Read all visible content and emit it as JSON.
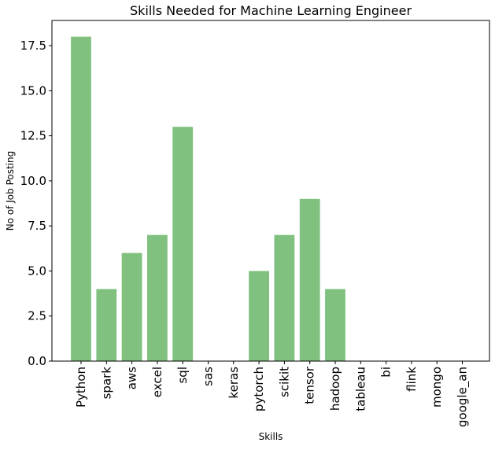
{
  "chart_data": {
    "type": "bar",
    "title": "Skills Needed for Machine Learning Engineer",
    "xlabel": "Skills",
    "ylabel": "No of Job Posting",
    "categories": [
      "Python",
      "spark",
      "aws",
      "excel",
      "sql",
      "sas",
      "keras",
      "pytorch",
      "scikit",
      "tensor",
      "hadoop",
      "tableau",
      "bi",
      "flink",
      "mongo",
      "google_an"
    ],
    "values": [
      18,
      4,
      6,
      7,
      13,
      0,
      0,
      5,
      7,
      9,
      4,
      0,
      0,
      0,
      0,
      0
    ],
    "ylim": [
      0,
      18.9
    ],
    "yticks": [
      0.0,
      2.5,
      5.0,
      7.5,
      10.0,
      12.5,
      15.0,
      17.5
    ],
    "ytick_labels": [
      "0.0",
      "2.5",
      "5.0",
      "7.5",
      "10.0",
      "12.5",
      "15.0",
      "17.5"
    ],
    "grid": false,
    "colors": {
      "bar": "#80c180",
      "axis": "#000000",
      "background": "#ffffff"
    }
  }
}
